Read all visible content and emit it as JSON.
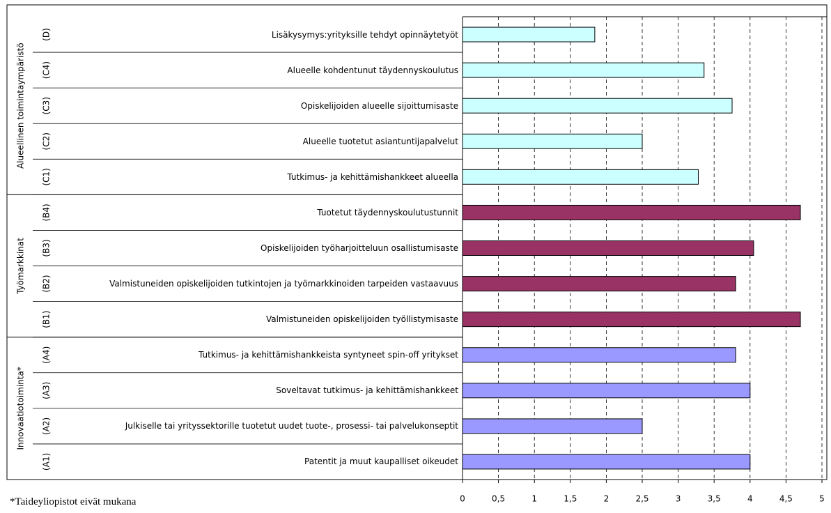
{
  "chart_data": {
    "type": "bar",
    "orientation": "horizontal",
    "categories": [
      "Lisäkysymys:yrityksille tehdyt opinnäytetyöt",
      "Alueelle kohdentunut täydennyskoulutus",
      "Opiskelijoiden alueelle sijoittumisaste",
      "Alueelle tuotetut asiantuntijapalvelut",
      "Tutkimus- ja kehittämishankkeet alueella",
      "Tuotetut täydennyskoulutustunnit",
      "Opiskelijoiden työharjoitteluun osallistumisaste",
      "Valmistuneiden opiskelijoiden tutkintojen ja työmarkkinoiden tarpeiden vastaavuus",
      "Valmistuneiden opiskelijoiden työllistymisaste",
      "Tutkimus- ja kehittämishankkeista syntyneet spin-off yritykset",
      "Soveltavat tutkimus- ja kehittämishankkeet",
      "Julkiselle tai yrityssektorille tuotetut uudet tuote-, prosessi- tai palvelukonseptit",
      "Patentit ja muut kaupalliset oikeudet"
    ],
    "codes": [
      "(D)",
      "(C4)",
      "(C3)",
      "(C2)",
      "(C1)",
      "(B4)",
      "(B3)",
      "(B2)",
      "(B1)",
      "(A4)",
      "(A3)",
      "(A2)",
      "(A1)"
    ],
    "series": [
      {
        "name": "Alueellinen toimintaympäristö",
        "color": "#ccffff",
        "values": [
          1.84,
          3.36,
          3.75,
          2.5,
          3.28,
          null,
          null,
          null,
          null,
          null,
          null,
          null,
          null
        ]
      },
      {
        "name": "Työmarkkinat",
        "color": "#993366",
        "values": [
          null,
          null,
          null,
          null,
          null,
          4.7,
          4.05,
          3.8,
          4.7,
          null,
          null,
          null,
          null
        ]
      },
      {
        "name": "Innovaatiotoiminta*",
        "color": "#9999ff",
        "values": [
          null,
          null,
          null,
          null,
          null,
          null,
          null,
          null,
          null,
          3.8,
          4.0,
          2.5,
          4.0
        ]
      }
    ],
    "xlim": [
      0,
      5
    ],
    "xticks": [
      0,
      {
        "value": 0.5,
        "label": "0,5"
      },
      1,
      {
        "value": 1.5,
        "label": "1,5"
      },
      2,
      {
        "value": 2.5,
        "label": "2,5"
      },
      3,
      {
        "value": 3.5,
        "label": "3,5"
      },
      4,
      {
        "value": 4.5,
        "label": "4,5"
      },
      5
    ],
    "grid": true,
    "footnote": "*Taideyliopistot eivät mukana"
  }
}
